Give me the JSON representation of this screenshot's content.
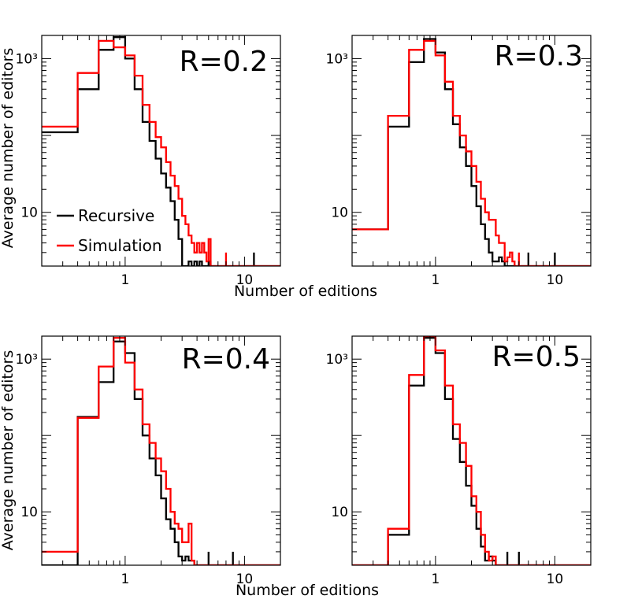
{
  "figure": {
    "xlabel": "Number of editions",
    "ylabel": "Average number of editors",
    "legend": [
      {
        "label": "Recursive",
        "color": "#000000"
      },
      {
        "label": "Simulation",
        "color": "#ff0000"
      }
    ]
  },
  "chart_data": [
    {
      "type": "histogram",
      "r_label": "R=0.2",
      "xscale": "log",
      "yscale": "log",
      "xlim": [
        0.2,
        20
      ],
      "ylim": [
        2,
        2000
      ],
      "x_ticks": [
        {
          "value": 1,
          "label": "1"
        },
        {
          "value": 10,
          "label": "10"
        }
      ],
      "y_ticks": [
        {
          "value": 10,
          "label": "10"
        },
        {
          "value": 1000,
          "label": "10³"
        }
      ],
      "legend_shown": true,
      "series": [
        {
          "name": "Recursive",
          "color": "#000000",
          "edges": [
            0.2,
            0.4,
            0.6,
            0.8,
            1.0,
            1.2,
            1.4,
            1.6,
            1.8,
            2.0,
            2.2,
            2.4,
            2.6,
            2.8,
            3.0,
            3.2,
            3.4,
            3.6,
            3.8,
            4.0,
            4.2,
            4.4,
            4.6,
            4.8,
            5.0,
            5.2
          ],
          "values": [
            110,
            400,
            1300,
            1900,
            1000,
            400,
            150,
            85,
            50,
            32,
            21,
            14,
            8,
            4.5,
            2,
            2,
            2.3,
            2,
            2.3,
            2,
            2.3,
            2,
            2,
            2,
            2.3
          ],
          "spikes": [
            {
              "x": 12,
              "value": 3
            }
          ]
        },
        {
          "name": "Simulation",
          "color": "#ff0000",
          "edges": [
            0.2,
            0.4,
            0.6,
            0.8,
            1.0,
            1.2,
            1.4,
            1.6,
            1.8,
            2.0,
            2.2,
            2.4,
            2.6,
            2.8,
            3.0,
            3.2,
            3.4,
            3.6,
            3.8,
            4.0,
            4.2,
            4.4,
            4.6,
            4.8,
            5.0,
            5.2
          ],
          "values": [
            130,
            650,
            1700,
            1400,
            1100,
            600,
            250,
            150,
            95,
            70,
            45,
            30,
            22,
            15,
            9,
            7,
            5,
            4,
            3,
            4,
            3,
            4,
            3,
            2.3,
            4.5
          ],
          "spikes": [
            {
              "x": 7,
              "value": 3
            }
          ]
        }
      ]
    },
    {
      "type": "histogram",
      "r_label": "R=0.3",
      "xscale": "log",
      "yscale": "log",
      "xlim": [
        0.2,
        20
      ],
      "ylim": [
        2,
        2000
      ],
      "x_ticks": [
        {
          "value": 1,
          "label": "1"
        },
        {
          "value": 10,
          "label": "10"
        }
      ],
      "y_ticks": [
        {
          "value": 10,
          "label": "10"
        },
        {
          "value": 1000,
          "label": "10³"
        }
      ],
      "legend_shown": false,
      "series": [
        {
          "name": "Recursive",
          "color": "#000000",
          "edges": [
            0.2,
            0.4,
            0.6,
            0.8,
            1.0,
            1.2,
            1.4,
            1.6,
            1.8,
            2.0,
            2.2,
            2.4,
            2.6,
            2.8,
            3.0,
            3.2,
            3.4,
            3.6,
            3.8
          ],
          "values": [
            6,
            130,
            900,
            1800,
            1200,
            400,
            140,
            70,
            40,
            22,
            12,
            7,
            4.5,
            3,
            2.3,
            2.3,
            2.6,
            2.3
          ],
          "spikes": [
            {
              "x": 6,
              "value": 3
            },
            {
              "x": 10,
              "value": 3
            }
          ]
        },
        {
          "name": "Simulation",
          "color": "#ff0000",
          "edges": [
            0.2,
            0.4,
            0.6,
            0.8,
            1.0,
            1.2,
            1.4,
            1.6,
            1.8,
            2.0,
            2.2,
            2.4,
            2.6,
            2.8,
            3.0,
            3.2,
            3.4,
            3.6,
            3.8,
            4.0,
            4.2,
            4.4,
            4.6
          ],
          "values": [
            6,
            180,
            1300,
            1700,
            1100,
            500,
            180,
            100,
            62,
            40,
            25,
            15,
            10,
            8,
            8,
            5,
            4,
            4,
            2.3,
            2.6,
            3,
            2.3
          ],
          "spikes": [
            {
              "x": 5,
              "value": 3
            }
          ]
        }
      ]
    },
    {
      "type": "histogram",
      "r_label": "R=0.4",
      "xscale": "log",
      "yscale": "log",
      "xlim": [
        0.2,
        20
      ],
      "ylim": [
        2,
        2000
      ],
      "x_ticks": [
        {
          "value": 1,
          "label": "1"
        },
        {
          "value": 10,
          "label": "10"
        }
      ],
      "y_ticks": [
        {
          "value": 10,
          "label": "10"
        },
        {
          "value": 1000,
          "label": "10³"
        }
      ],
      "legend_shown": false,
      "series": [
        {
          "name": "Recursive",
          "color": "#000000",
          "edges": [
            0.2,
            0.4,
            0.6,
            0.8,
            1.0,
            1.2,
            1.4,
            1.6,
            1.8,
            2.0,
            2.2,
            2.4,
            2.6,
            2.8,
            3.0,
            3.2,
            3.4,
            3.6,
            3.8
          ],
          "values": [
            2,
            175,
            500,
            1700,
            1200,
            300,
            100,
            50,
            30,
            15,
            8,
            6,
            4,
            2.6,
            2.3,
            2.6,
            2.3,
            2.3
          ],
          "spikes": [
            {
              "x": 5,
              "value": 3
            },
            {
              "x": 8,
              "value": 3
            }
          ]
        },
        {
          "name": "Simulation",
          "color": "#ff0000",
          "edges": [
            0.2,
            0.4,
            0.6,
            0.8,
            1.0,
            1.2,
            1.4,
            1.6,
            1.8,
            2.0,
            2.2,
            2.4,
            2.6,
            2.8,
            3.0,
            3.2,
            3.4,
            3.6,
            3.8
          ],
          "values": [
            3,
            170,
            800,
            1900,
            900,
            400,
            140,
            80,
            50,
            34,
            20,
            10,
            7,
            6,
            4,
            4,
            7,
            2.3
          ],
          "spikes": []
        }
      ]
    },
    {
      "type": "histogram",
      "r_label": "R=0.5",
      "xscale": "log",
      "yscale": "log",
      "xlim": [
        0.2,
        20
      ],
      "ylim": [
        2,
        2000
      ],
      "x_ticks": [
        {
          "value": 1,
          "label": "1"
        },
        {
          "value": 10,
          "label": "10"
        }
      ],
      "y_ticks": [
        {
          "value": 10,
          "label": "10"
        },
        {
          "value": 1000,
          "label": "10³"
        }
      ],
      "legend_shown": false,
      "series": [
        {
          "name": "Recursive",
          "color": "#000000",
          "edges": [
            0.2,
            0.4,
            0.6,
            0.8,
            1.0,
            1.2,
            1.4,
            1.6,
            1.8,
            2.0,
            2.2,
            2.4,
            2.6,
            2.8,
            3.0,
            3.2
          ],
          "values": [
            2,
            5,
            450,
            1900,
            1200,
            300,
            90,
            45,
            22,
            12,
            6,
            3.5,
            2.3,
            2.6,
            2.3
          ],
          "spikes": [
            {
              "x": 4,
              "value": 3
            },
            {
              "x": 5,
              "value": 3
            }
          ]
        },
        {
          "name": "Simulation",
          "color": "#ff0000",
          "edges": [
            0.2,
            0.4,
            0.6,
            0.8,
            1.0,
            1.2,
            1.4,
            1.6,
            1.8,
            2.0,
            2.2,
            2.4,
            2.6,
            2.8,
            3.0,
            3.2
          ],
          "values": [
            2,
            6,
            620,
            2000,
            1300,
            450,
            140,
            80,
            40,
            16,
            10,
            5,
            3,
            2.3,
            2.6
          ],
          "spikes": []
        }
      ]
    }
  ]
}
